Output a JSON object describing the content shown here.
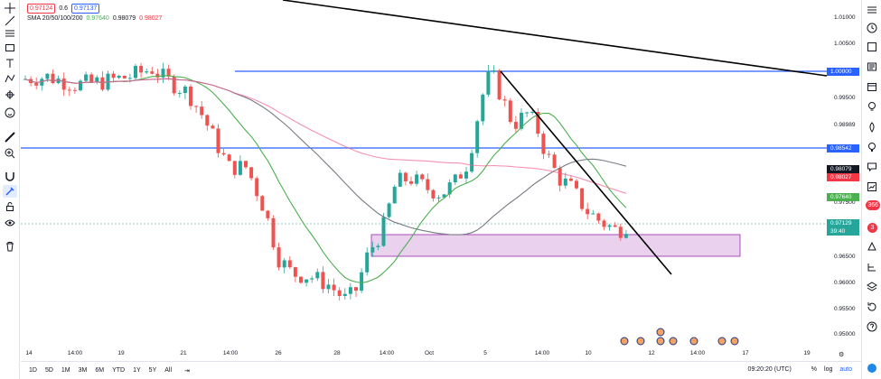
{
  "legend": {
    "bid": "0.97124",
    "spread": "0.6",
    "ask": "0.97137",
    "sma_label": "SMA 20/50/100/200",
    "sma20": "0.97640",
    "sma50": "0.98079",
    "sma100": "0.98027"
  },
  "price_axis": {
    "ticks": [
      "1.01000",
      "1.00500",
      "0.99500",
      "0.98989",
      "0.97500",
      "0.96500",
      "0.96000",
      "0.95500",
      "0.95000"
    ],
    "labels": {
      "level_1": "1.00000",
      "level_2": "0.98542",
      "sma50": "0.98079",
      "sma100": "0.98027",
      "sma20": "0.97640",
      "last": "0.97129",
      "countdown": "39:40"
    }
  },
  "time_axis": {
    "ticks": [
      "14",
      "14:00",
      "19",
      "21",
      "14:00",
      "26",
      "28",
      "14:00",
      "Oct",
      "5",
      "14:00",
      "10",
      "12",
      "14:00",
      "17",
      "19"
    ]
  },
  "bottom_bar": {
    "timeframes": [
      "1D",
      "5D",
      "1M",
      "3M",
      "6M",
      "YTD",
      "1Y",
      "5Y",
      "All"
    ],
    "clock": "09:20:20 (UTC)",
    "percent": "%",
    "log": "log",
    "auto": "auto"
  },
  "right_toolbar": {
    "badge_count": "366",
    "alert_count": "3"
  },
  "colors": {
    "up": "#26a69a",
    "down": "#ef5350",
    "sma20": "#4caf50",
    "sma50": "#787b86",
    "sma100": "#f06292",
    "hline": "#2962ff",
    "trendline": "#000000",
    "zone_fill": "#e1bee7",
    "zone_border": "#9c27b0"
  },
  "chart_data": {
    "type": "candlestick",
    "series": [
      {
        "name": "SMA 20"
      },
      {
        "name": "SMA 50"
      },
      {
        "name": "SMA 100"
      },
      {
        "name": "SMA 200"
      }
    ]
  }
}
